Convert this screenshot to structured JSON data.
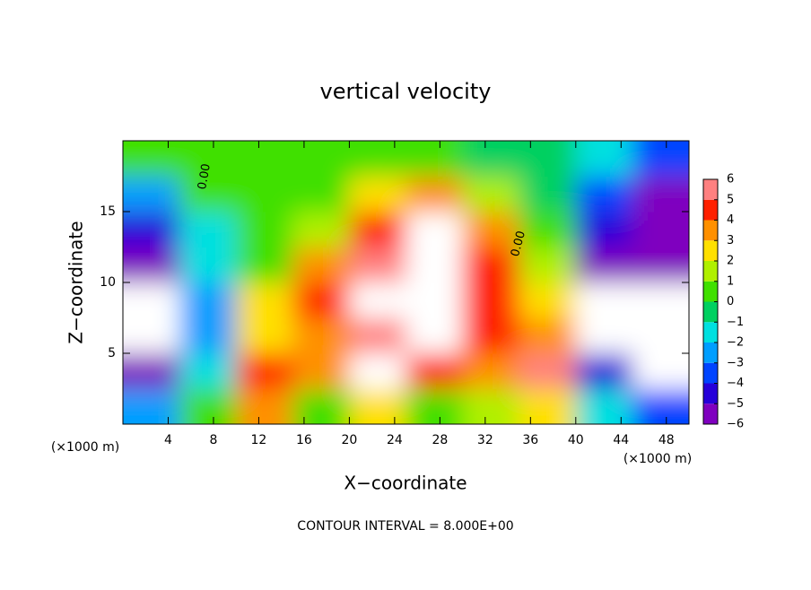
{
  "chart_data": {
    "type": "contour",
    "title": "vertical velocity",
    "xlabel": "X−coordinate",
    "ylabel": "Z−coordinate",
    "x_unit": "(×1000 m)",
    "x_unit_right": "(×1000 m)",
    "footer": "CONTOUR INTERVAL = 8.000E+00",
    "contour_labels": [
      "0.00",
      "0.00"
    ],
    "xlim": [
      0,
      50
    ],
    "ylim": [
      0,
      20
    ],
    "xticks": [
      4,
      8,
      12,
      16,
      20,
      24,
      28,
      32,
      36,
      40,
      44,
      48
    ],
    "yticks": [
      5,
      10,
      15
    ],
    "x": [
      2.5,
      7.5,
      12.5,
      17.5,
      22.5,
      27.5,
      32.5,
      37.5,
      42.5,
      47.5
    ],
    "y": [
      1.25,
      3.75,
      6.25,
      8.75,
      11.25,
      13.75,
      16.25,
      18.75
    ],
    "z": [
      [
        -2,
        0.5,
        4,
        1,
        3,
        1,
        2,
        3,
        -1,
        -3
      ],
      [
        -6,
        -1,
        5,
        4,
        7,
        5,
        4,
        6,
        -4,
        -7
      ],
      [
        -7,
        -2,
        3,
        4,
        6,
        7,
        5,
        4,
        -7,
        -7
      ],
      [
        -7,
        -2,
        3,
        5,
        7,
        8,
        5,
        3,
        -7,
        -7
      ],
      [
        -5,
        -1.5,
        1,
        4,
        6,
        7,
        5,
        2,
        -5,
        -6
      ],
      [
        -4,
        -1,
        1,
        2,
        5,
        7,
        4,
        1,
        -4,
        -5.5
      ],
      [
        -2,
        0.5,
        0.5,
        1,
        3,
        3.5,
        1.5,
        0,
        -3,
        -5
      ],
      [
        0.5,
        0.5,
        0.5,
        0.5,
        0.5,
        0.5,
        0,
        0,
        -1,
        -3
      ]
    ],
    "colorbar_ticks": [
      {
        "value": -6,
        "label": "−6"
      },
      {
        "value": -5,
        "label": "−5"
      },
      {
        "value": -4,
        "label": "−4"
      },
      {
        "value": -3,
        "label": "−3"
      },
      {
        "value": -2,
        "label": "−2"
      },
      {
        "value": -1,
        "label": "−1"
      },
      0,
      1,
      2,
      3,
      4,
      5,
      6
    ],
    "colors": [
      "#7f00bf",
      "#2600d9",
      "#0044ff",
      "#009eff",
      "#00e0e0",
      "#00d060",
      "#40e000",
      "#b0f000",
      "#ffe000",
      "#ff9000",
      "#ff2000",
      "#ff8080"
    ],
    "over_color": "#ffffff",
    "under_color": "#ffffff"
  }
}
